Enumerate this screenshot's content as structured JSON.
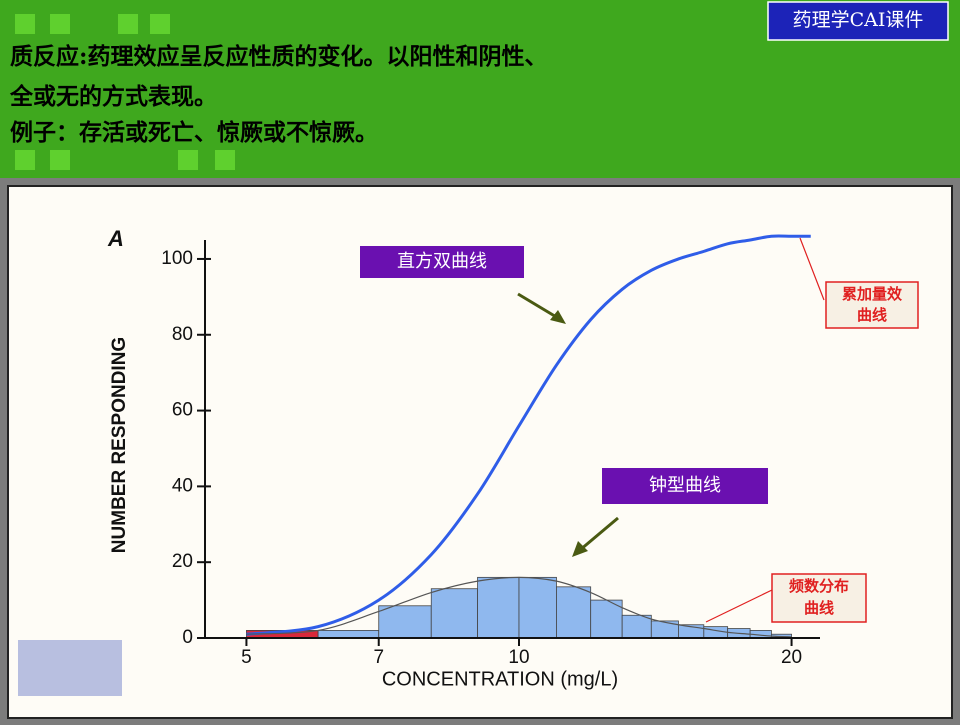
{
  "header": {
    "badge": "药理学CAI课件",
    "lines": [
      "质反应:药理效应呈反应性质的变化。以阳性和阴性、",
      "全或无的方式表现。",
      "例子：存活或死亡、惊厥或不惊厥。"
    ]
  },
  "chart_data": {
    "type": "histogram",
    "panel": "A",
    "xlabel": "CONCENTRATION (mg/L)",
    "ylabel": "NUMBER RESPONDING",
    "xscale": "log",
    "xlim": [
      4.5,
      21.5
    ],
    "xticks": [
      5,
      7,
      10,
      20
    ],
    "ylim": [
      0,
      105
    ],
    "yticks": [
      0,
      20,
      40,
      60,
      80,
      100
    ],
    "bins": [
      5,
      6,
      7,
      8,
      9,
      10,
      11,
      12,
      13,
      14,
      15,
      16,
      17,
      18,
      19,
      20
    ],
    "counts": [
      2,
      2,
      8.5,
      13,
      16,
      16,
      13.5,
      10,
      6,
      4.5,
      3.5,
      3,
      2.5,
      2,
      1
    ],
    "bar_colors": [
      "#d8283a",
      "#8fb8ee",
      "#8fb8ee",
      "#8fb8ee",
      "#8fb8ee",
      "#8fb8ee",
      "#8fb8ee",
      "#8fb8ee",
      "#8fb8ee",
      "#8fb8ee",
      "#8fb8ee",
      "#8fb8ee",
      "#8fb8ee",
      "#8fb8ee",
      "#8fb8ee"
    ],
    "series": [
      {
        "color": "#2f5de8",
        "x": [
          5,
          6,
          7,
          8,
          9,
          10,
          11,
          12,
          13,
          14,
          15,
          16,
          17,
          18,
          19,
          20,
          21
        ],
        "values": [
          1,
          3,
          10,
          22,
          38,
          56,
          72,
          84,
          92,
          97,
          100,
          102,
          104,
          105,
          106,
          106,
          106
        ]
      },
      {
        "color": "#555555",
        "x": [
          5,
          6,
          7,
          8,
          9,
          10,
          11,
          12,
          13,
          14,
          15,
          16,
          17,
          18,
          19,
          20
        ],
        "values": [
          1,
          2,
          7,
          12,
          15,
          16,
          15,
          12,
          8,
          5,
          3.5,
          2.5,
          1.5,
          1,
          0.5,
          0.3
        ]
      }
    ],
    "annotations": [
      "直方双曲线",
      "钟型曲线",
      "累加量效曲线",
      "频数分布曲线"
    ]
  }
}
